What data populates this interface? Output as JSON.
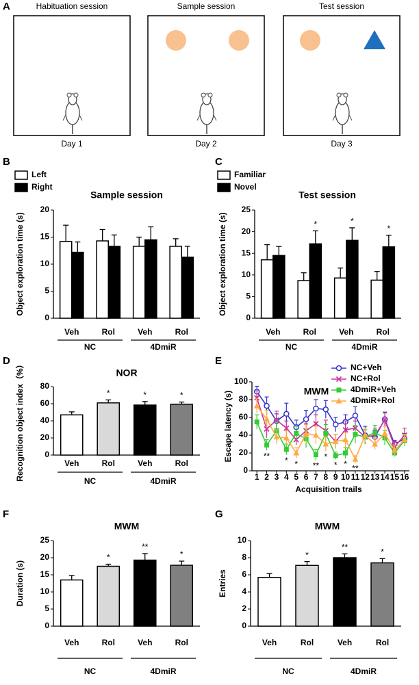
{
  "diagram": {
    "panel": "A",
    "sessions": [
      {
        "title": "Habituation session",
        "day": "Day 1"
      },
      {
        "title": "Sample session",
        "day": "Day 2"
      },
      {
        "title": "Test session",
        "day": "Day 3"
      }
    ]
  },
  "chart_data": [
    {
      "panel": "B",
      "type": "bar",
      "title": "Sample session",
      "ylabel": "Object exploration time (s)",
      "categories": [
        "Veh",
        "Rol",
        "Veh",
        "Rol"
      ],
      "groups": [
        "NC",
        "4DmiR"
      ],
      "series": [
        {
          "name": "Left",
          "color": "#ffffff",
          "values": [
            14.2,
            14.3,
            13.3,
            13.3
          ],
          "errors": [
            3.0,
            2.1,
            1.7,
            1.4
          ]
        },
        {
          "name": "Right",
          "color": "#000000",
          "values": [
            12.2,
            13.3,
            14.5,
            11.3
          ],
          "errors": [
            1.9,
            2.1,
            2.4,
            2.0
          ]
        }
      ],
      "ylim": [
        0,
        20
      ],
      "yticks": [
        0,
        5,
        10,
        15,
        20
      ],
      "legend": "upper left"
    },
    {
      "panel": "C",
      "type": "bar",
      "title": "Test session",
      "ylabel": "Object exploration time (s)",
      "categories": [
        "Veh",
        "Rol",
        "Veh",
        "Rol"
      ],
      "groups": [
        "NC",
        "4DmiR"
      ],
      "series": [
        {
          "name": "Familiar",
          "color": "#ffffff",
          "values": [
            13.5,
            8.7,
            9.3,
            8.8
          ],
          "errors": [
            3.5,
            1.8,
            2.3,
            2.0
          ]
        },
        {
          "name": "Novel",
          "color": "#000000",
          "values": [
            14.5,
            17.2,
            18.0,
            16.5
          ],
          "errors": [
            2.1,
            3.0,
            2.9,
            2.7
          ],
          "significance": [
            null,
            "*",
            "*",
            "*"
          ]
        }
      ],
      "ylim": [
        0,
        25
      ],
      "yticks": [
        0,
        5,
        10,
        15,
        20,
        25
      ],
      "legend": "upper left"
    },
    {
      "panel": "D",
      "type": "bar",
      "title": "NOR",
      "ylabel": "Recognition object index（%）",
      "categories": [
        "Veh",
        "Rol",
        "Veh",
        "Rol"
      ],
      "groups": [
        "NC",
        "4DmiR"
      ],
      "values": [
        47,
        61,
        58.5,
        59.5
      ],
      "errors": [
        3.5,
        3.5,
        4.0,
        2.5
      ],
      "significance": [
        null,
        "*",
        "*",
        "*"
      ],
      "colors": [
        "#ffffff",
        "#d9d9d9",
        "#000000",
        "#808080"
      ],
      "ylim": [
        0,
        80
      ],
      "yticks": [
        0,
        20,
        40,
        60,
        80
      ]
    },
    {
      "panel": "E",
      "type": "line",
      "title": "MWM",
      "ylabel": "Escape latency (s)",
      "xlabel": "Acquisition trails",
      "x": [
        1,
        2,
        3,
        4,
        5,
        6,
        7,
        8,
        9,
        10,
        11,
        12,
        13,
        14,
        15,
        16
      ],
      "xlim": [
        0.5,
        16.5
      ],
      "xticks": [
        1,
        2,
        3,
        4,
        5,
        6,
        7,
        8,
        9,
        10,
        11,
        12,
        13,
        14,
        15,
        16
      ],
      "ylim": [
        0,
        100
      ],
      "yticks": [
        0,
        20,
        40,
        60,
        80,
        100
      ],
      "legend": "upper right",
      "series": [
        {
          "name": "NC+Veh",
          "color": "#3333cc",
          "marker": "circle",
          "values": [
            89,
            73,
            56,
            64,
            49,
            58,
            70,
            69,
            52,
            55,
            62,
            40,
            38,
            58,
            30,
            36
          ],
          "errors": [
            6,
            10,
            8,
            12,
            8,
            10,
            10,
            10,
            8,
            8,
            10,
            10,
            8,
            8,
            4,
            6
          ]
        },
        {
          "name": "NC+Rol",
          "color": "#cc3399",
          "marker": "x",
          "values": [
            82,
            47,
            57,
            48,
            35,
            45,
            53,
            45,
            33,
            46,
            48,
            38,
            40,
            57,
            27,
            40
          ],
          "errors": [
            8,
            10,
            10,
            8,
            6,
            8,
            10,
            12,
            8,
            10,
            8,
            8,
            8,
            8,
            6,
            8
          ]
        },
        {
          "name": "4DmiR+Veh",
          "color": "#33cc33",
          "marker": "square",
          "values": [
            55,
            29,
            45,
            24,
            42,
            36,
            18,
            42,
            17,
            20,
            41,
            38,
            43,
            37,
            20,
            34
          ],
          "errors": [
            8,
            6,
            10,
            6,
            8,
            10,
            6,
            10,
            4,
            6,
            10,
            8,
            8,
            8,
            4,
            6
          ]
        },
        {
          "name": "4DmiR+Rol",
          "color": "#ffaa44",
          "marker": "triangle",
          "values": [
            73,
            58,
            38,
            37,
            20,
            42,
            40,
            30,
            33,
            35,
            13,
            40,
            30,
            42,
            23,
            35
          ],
          "errors": [
            8,
            10,
            8,
            8,
            6,
            10,
            10,
            8,
            8,
            8,
            4,
            8,
            6,
            8,
            6,
            6
          ]
        }
      ],
      "annotations": [
        {
          "x": 2,
          "label": "**"
        },
        {
          "x": 4,
          "label": "*"
        },
        {
          "x": 5,
          "label": "*"
        },
        {
          "x": 7,
          "label": "**"
        },
        {
          "x": 8,
          "label": "*"
        },
        {
          "x": 9,
          "label": "*"
        },
        {
          "x": 10,
          "label": "*"
        },
        {
          "x": 11,
          "label": "**"
        }
      ]
    },
    {
      "panel": "F",
      "type": "bar",
      "title": "MWM",
      "ylabel": "Duration (s)",
      "categories": [
        "Veh",
        "Rol",
        "Veh",
        "Rol"
      ],
      "groups": [
        "NC",
        "4DmiR"
      ],
      "values": [
        13.5,
        17.5,
        19.3,
        17.8
      ],
      "errors": [
        1.3,
        0.6,
        1.9,
        1.2
      ],
      "significance": [
        null,
        "*",
        "**",
        "*"
      ],
      "colors": [
        "#ffffff",
        "#d9d9d9",
        "#000000",
        "#808080"
      ],
      "ylim": [
        0,
        25
      ],
      "yticks": [
        0,
        5,
        10,
        15,
        20,
        25
      ]
    },
    {
      "panel": "G",
      "type": "bar",
      "title": "MWM",
      "ylabel": "Entries",
      "categories": [
        "Veh",
        "Rol",
        "Veh",
        "Rol"
      ],
      "groups": [
        "NC",
        "4DmiR"
      ],
      "values": [
        5.7,
        7.1,
        8.0,
        7.4
      ],
      "errors": [
        0.45,
        0.45,
        0.45,
        0.5
      ],
      "significance": [
        null,
        "*",
        "**",
        "*"
      ],
      "colors": [
        "#ffffff",
        "#d9d9d9",
        "#000000",
        "#808080"
      ],
      "ylim": [
        0,
        10
      ],
      "yticks": [
        0,
        2,
        4,
        6,
        8,
        10
      ]
    }
  ]
}
